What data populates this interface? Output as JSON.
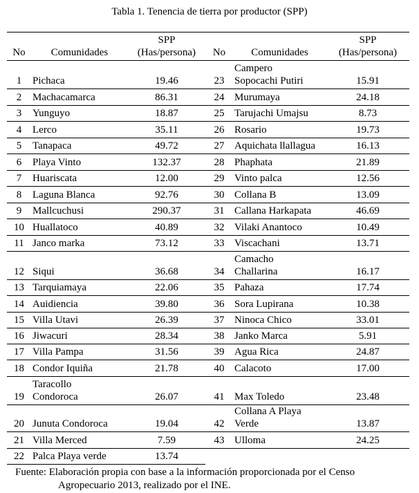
{
  "title": "Tabla 1. Tenencia de tierra por productor (SPP)",
  "headers": {
    "no": "No",
    "comunidades": "Comunidades",
    "spp_line1": "SPP",
    "spp_line2": "(Has/persona)"
  },
  "left": [
    {
      "no": "1",
      "name": "Pichaca",
      "spp": "19.46"
    },
    {
      "no": "2",
      "name": "Machacamarca",
      "spp": "86.31"
    },
    {
      "no": "3",
      "name": "Yunguyo",
      "spp": "18.87"
    },
    {
      "no": "4",
      "name": "Lerco",
      "spp": "35.11"
    },
    {
      "no": "5",
      "name": "Tanapaca",
      "spp": "49.72"
    },
    {
      "no": "6",
      "name": "Playa Vinto",
      "spp": "132.37"
    },
    {
      "no": "7",
      "name": "Huariscata",
      "spp": "12.00"
    },
    {
      "no": "8",
      "name": "Laguna Blanca",
      "spp": "92.76"
    },
    {
      "no": "9",
      "name": "Mallcuchusi",
      "spp": "290.37"
    },
    {
      "no": "10",
      "name": "Huallatoco",
      "spp": "40.89"
    },
    {
      "no": "11",
      "name": "Janco marka",
      "spp": "73.12"
    },
    {
      "no": "12",
      "name": "Siqui",
      "spp": "36.68"
    },
    {
      "no": "13",
      "name": "Tarquiamaya",
      "spp": "22.06"
    },
    {
      "no": "14",
      "name": "Auidiencia",
      "spp": "39.80"
    },
    {
      "no": "15",
      "name": "Villa Utavi",
      "spp": "26.39"
    },
    {
      "no": "16",
      "name": "Jiwacuri",
      "spp": "28.34"
    },
    {
      "no": "17",
      "name": "Villa Pampa",
      "spp": "31.56"
    },
    {
      "no": "18",
      "name": "Condor Iquiña",
      "spp": "21.78"
    },
    {
      "no": "19",
      "name": "Taracollo Condoroca",
      "spp": "26.07"
    },
    {
      "no": "20",
      "name": "Junuta Condoroca",
      "spp": "19.04"
    },
    {
      "no": "21",
      "name": "Villa Merced",
      "spp": "7.59"
    },
    {
      "no": "22",
      "name": "Palca Playa verde",
      "spp": "13.74"
    }
  ],
  "right": [
    {
      "no": "23",
      "name": "Campero Sopocachi Putiri",
      "spp": "15.91"
    },
    {
      "no": "24",
      "name": "Murumaya",
      "spp": "24.18"
    },
    {
      "no": "25",
      "name": "Tarujachi Umajsu",
      "spp": "8.73"
    },
    {
      "no": "26",
      "name": "Rosario",
      "spp": "19.73"
    },
    {
      "no": "27",
      "name": "Aquichata llallagua",
      "spp": "16.13"
    },
    {
      "no": "28",
      "name": "Phaphata",
      "spp": "21.89"
    },
    {
      "no": "29",
      "name": "Vinto palca",
      "spp": "12.56"
    },
    {
      "no": "30",
      "name": "Collana B",
      "spp": "13.09"
    },
    {
      "no": "31",
      "name": "Callana Harkapata",
      "spp": "46.69"
    },
    {
      "no": "32",
      "name": "Vilaki Anantoco",
      "spp": "10.49"
    },
    {
      "no": "33",
      "name": "Viscachani",
      "spp": "13.71"
    },
    {
      "no": "34",
      "name": "Camacho Challarina",
      "spp": "16.17"
    },
    {
      "no": "35",
      "name": "Pahaza",
      "spp": "17.74"
    },
    {
      "no": "36",
      "name": "Sora Lupirana",
      "spp": "10.38"
    },
    {
      "no": "37",
      "name": "Ninoca Chico",
      "spp": "33.01"
    },
    {
      "no": "38",
      "name": "Janko Marca",
      "spp": "5.91"
    },
    {
      "no": "39",
      "name": "Agua Rica",
      "spp": "24.87"
    },
    {
      "no": "40",
      "name": "Calacoto",
      "spp": "17.00"
    },
    {
      "no": "41",
      "name": "Max Toledo",
      "spp": "23.48"
    },
    {
      "no": "42",
      "name": "Collana A Playa Verde",
      "spp": "13.87"
    },
    {
      "no": "43",
      "name": "Ulloma",
      "spp": "24.25"
    }
  ],
  "footnote_line1": "Fuente: Elaboración propia con base a la información proporcionada por el Censo",
  "footnote_line2": "Agropecuario 2013, realizado por el INE."
}
